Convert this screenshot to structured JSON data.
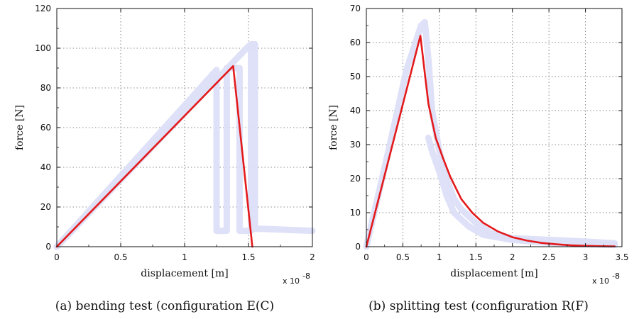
{
  "colors": {
    "sim": "#e31a1c",
    "exp": "#dcdff7",
    "grid": "#666666",
    "axis": "#111111"
  },
  "chart_data": [
    {
      "type": "line",
      "caption": "(a) bending test (configuration E(C)",
      "xlabel": "displacement [m]",
      "ylabel": "force [N]",
      "x_exponent_label": "x 10",
      "x_exponent_power": "-8",
      "xlim": [
        0,
        2
      ],
      "ylim": [
        0,
        120
      ],
      "xticks": [
        0,
        0.5,
        1,
        1.5,
        2
      ],
      "xtick_labels": [
        "0",
        "0.5",
        "1",
        "1.5",
        "2"
      ],
      "yticks": [
        0,
        20,
        40,
        60,
        80,
        100,
        120
      ],
      "ytick_labels": [
        "0",
        "20",
        "40",
        "60",
        "80",
        "100",
        "120"
      ],
      "grid": true,
      "series": [
        {
          "role": "experiment-band",
          "color": "#dcdff7",
          "x": [
            0,
            1.25,
            1.25,
            1.33,
            1.33,
            1.43,
            1.43,
            1.52,
            1.52,
            1.55,
            1.55,
            1.6,
            2.0
          ],
          "y": [
            0,
            89,
            8,
            8,
            90,
            90,
            8,
            8,
            102,
            102,
            9,
            9,
            8
          ]
        },
        {
          "role": "experiment-band-upper",
          "color": "#dcdff7",
          "x": [
            0,
            1.5,
            1.55
          ],
          "y": [
            0,
            101,
            102
          ]
        },
        {
          "role": "simulation",
          "color": "#e31a1c",
          "x": [
            0,
            1.38,
            1.53
          ],
          "y": [
            0,
            91,
            0
          ]
        }
      ]
    },
    {
      "type": "line",
      "caption": "(b) splitting test (configuration R(F)",
      "xlabel": "displacement [m]",
      "ylabel": "force [N]",
      "x_exponent_label": "x 10",
      "x_exponent_power": "-8",
      "xlim": [
        0,
        3.5
      ],
      "ylim": [
        0,
        70
      ],
      "xticks": [
        0,
        0.5,
        1,
        1.5,
        2,
        2.5,
        3,
        3.5
      ],
      "xtick_labels": [
        "0",
        "0.5",
        "1",
        "1.5",
        "2",
        "2.5",
        "3",
        "3.5"
      ],
      "yticks": [
        0,
        10,
        20,
        30,
        40,
        50,
        60,
        70
      ],
      "ytick_labels": [
        "0",
        "10",
        "20",
        "30",
        "40",
        "50",
        "60",
        "70"
      ],
      "grid": true,
      "series": [
        {
          "role": "experiment-band",
          "color": "#dcdff7",
          "x": [
            0,
            0.3,
            0.55,
            0.75,
            0.8,
            0.85,
            0.9,
            1.0,
            1.1,
            1.2,
            1.3,
            1.5,
            1.7,
            2.0,
            2.5,
            3.0,
            3.4
          ],
          "y": [
            0,
            28,
            52,
            65,
            66,
            55,
            40,
            28,
            20,
            14,
            11,
            7,
            4,
            2.5,
            2,
            1.5,
            1
          ]
        },
        {
          "role": "experiment-band-lower",
          "color": "#dcdff7",
          "x": [
            0.85,
            0.9,
            1.0,
            1.1,
            1.2,
            1.4,
            1.6,
            2.0,
            2.6,
            3.4
          ],
          "y": [
            32,
            28,
            22,
            15,
            10,
            6,
            3.5,
            2,
            1,
            0.5
          ]
        },
        {
          "role": "simulation",
          "color": "#e31a1c",
          "x": [
            0,
            0.74,
            0.85,
            0.95,
            1.05,
            1.15,
            1.3,
            1.45,
            1.6,
            1.8,
            2.0,
            2.2,
            2.4,
            2.6,
            2.8,
            3.0,
            3.2,
            3.4
          ],
          "y": [
            0,
            62,
            42,
            32,
            26,
            20.5,
            14,
            10,
            7,
            4.5,
            2.8,
            1.8,
            1.1,
            0.7,
            0.4,
            0.25,
            0.15,
            0.1
          ]
        }
      ]
    }
  ]
}
